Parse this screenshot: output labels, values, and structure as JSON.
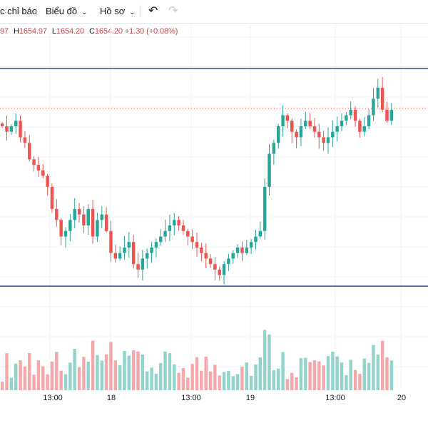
{
  "toolbar": {
    "indicators_label": "c chỉ báo",
    "chart_label": "Biểu đồ",
    "profile_label": "Hồ sơ",
    "undo_icon": "undo-icon",
    "redo_icon": "redo-icon"
  },
  "ohlc": {
    "open_value": "97",
    "high_label": "H",
    "high_value": "1654.97",
    "low_label": "L",
    "low_value": "1654.20",
    "close_label": "C",
    "close_value": "1654.20",
    "change": "+1.30 (+0.08%)"
  },
  "colors": {
    "up": "#26a69a",
    "down": "#ef5350",
    "up_volume": "#93d3cb",
    "down_volume": "#f4a8aa",
    "box_line": "#2a4d88",
    "price_line": "#ef5350"
  },
  "time_axis": {
    "ticks": [
      "13:00",
      "18",
      "13:00",
      "19",
      "13:00",
      "20"
    ]
  },
  "chart_data": {
    "type": "candlestick",
    "price_range": [
      1618,
      1662
    ],
    "last_price": 1654.2,
    "box": {
      "top": 1661.5,
      "bottom": 1622
    },
    "closes": [
      1651,
      1650,
      1651,
      1652,
      1649,
      1648,
      1645,
      1644,
      1643,
      1642,
      1640,
      1636,
      1634,
      1631,
      1632,
      1634,
      1636,
      1635,
      1633,
      1636,
      1631,
      1634,
      1635,
      1632,
      1628,
      1627,
      1628,
      1629,
      1630,
      1626,
      1625,
      1627,
      1628,
      1629,
      1630,
      1631,
      1632,
      1633,
      1634,
      1633,
      1632,
      1631,
      1630,
      1629,
      1628,
      1627,
      1626,
      1625,
      1624,
      1626,
      1627,
      1628,
      1629,
      1628,
      1629,
      1630,
      1631,
      1632,
      1640,
      1646,
      1648,
      1651,
      1653,
      1652,
      1650,
      1649,
      1651,
      1652,
      1651,
      1650,
      1649,
      1648,
      1649,
      1650,
      1651,
      1652,
      1653,
      1654,
      1652,
      1650,
      1651,
      1653,
      1656,
      1658,
      1654,
      1652,
      1654
    ]
  }
}
